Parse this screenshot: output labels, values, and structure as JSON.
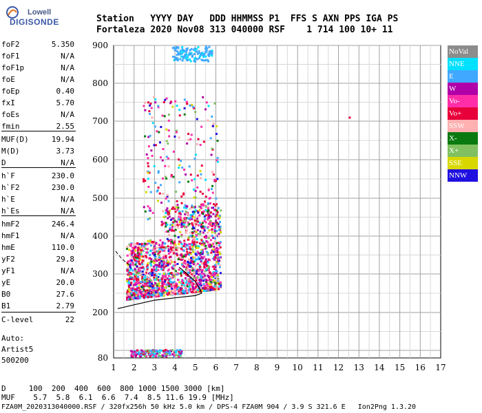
{
  "logo": {
    "brand": "Lowell",
    "product": "DIGISONDE"
  },
  "header": {
    "line1": "Station   YYYY DAY   DDD HHMMSS P1  FFS S AXN PPS IGA PS",
    "line2": "Fortaleza 2020 Nov08 313 040000 RSF    1 714 100 10+ 11"
  },
  "params": [
    {
      "k": "foF2",
      "v": "5.350"
    },
    {
      "k": "foF1",
      "v": "N/A"
    },
    {
      "k": "foF1p",
      "v": "N/A"
    },
    {
      "k": "foE",
      "v": "N/A"
    },
    {
      "k": "foEp",
      "v": "0.40"
    },
    {
      "k": "fxI",
      "v": "5.70"
    },
    {
      "k": "foEs",
      "v": "N/A"
    },
    {
      "k": "fmin",
      "v": "2.55"
    },
    {
      "k": "MUF(D)",
      "v": "19.94"
    },
    {
      "k": "M(D)",
      "v": "3.73"
    },
    {
      "k": "D",
      "v": "N/A"
    },
    {
      "k": "h`F",
      "v": "230.0"
    },
    {
      "k": "h`F2",
      "v": "230.0"
    },
    {
      "k": "h`E",
      "v": "N/A"
    },
    {
      "k": "h`Es",
      "v": "N/A"
    },
    {
      "k": "hmF2",
      "v": "246.4"
    },
    {
      "k": "hmF1",
      "v": "N/A"
    },
    {
      "k": "hmE",
      "v": "110.0"
    },
    {
      "k": "yF2",
      "v": "29.8"
    },
    {
      "k": "yF1",
      "v": "N/A"
    },
    {
      "k": "yE",
      "v": "20.0"
    },
    {
      "k": "B0",
      "v": "27.6"
    },
    {
      "k": "B1",
      "v": "2.79"
    },
    {
      "k": "C-level",
      "v": "22"
    }
  ],
  "auto": {
    "l1": "Auto:",
    "l2": "Artist5",
    "l3": "500200"
  },
  "legend": [
    {
      "label": "NoVal",
      "color": "#8c8c8c"
    },
    {
      "label": "NNE",
      "color": "#00e0ff"
    },
    {
      "label": "E",
      "color": "#40a8ff"
    },
    {
      "label": "W",
      "color": "#b000a8"
    },
    {
      "label": "Vo-",
      "color": "#ff2ea8"
    },
    {
      "label": "Vo+",
      "color": "#e8003a"
    },
    {
      "label": "SSW",
      "color": "#ffb0b0"
    },
    {
      "label": "X-",
      "color": "#0a7a10"
    },
    {
      "label": "X+",
      "color": "#80c060"
    },
    {
      "label": "SSE",
      "color": "#d8d800"
    },
    {
      "label": "NNW",
      "color": "#2010e0"
    }
  ],
  "footer": {
    "d_line": "D     100  200  400  600  800 1000 1500 3000 [km]",
    "muf_line": "MUF    5.7  5.8  6.1  6.6  7.4  8.5 11.6 19.9 [MHz]",
    "file_line": "FZA0M_2020313040000.RSF / 320fx256h 50 kHz 5.0 km / DPS-4 FZA0M 904 / 3.9 S 321.6 E   Ion2Png 1.3.20"
  },
  "chart_data": {
    "type": "scatter",
    "x_ticks": [
      1,
      2,
      3,
      4,
      5,
      6,
      7,
      8,
      9,
      10,
      11,
      12,
      13,
      14,
      15,
      16,
      17
    ],
    "y_ticks": [
      80,
      200,
      300,
      400,
      500,
      600,
      700,
      800,
      900
    ],
    "xlim": [
      1,
      17
    ],
    "y_axis_note": "non-linear virtual height scale",
    "grid": true,
    "trace": {
      "name": "F-trace",
      "points": [
        [
          1.2,
          210
        ],
        [
          2,
          220
        ],
        [
          3,
          232
        ],
        [
          4,
          238
        ],
        [
          5,
          244
        ],
        [
          5.3,
          250
        ],
        [
          5.2,
          263
        ],
        [
          5.0,
          280
        ],
        [
          4.6,
          300
        ],
        [
          4.2,
          318
        ]
      ]
    },
    "e_trace": {
      "name": "E-trace",
      "points": [
        [
          1.1,
          360
        ],
        [
          1.4,
          340
        ],
        [
          1.8,
          322
        ]
      ]
    },
    "echo_clusters": [
      {
        "x_range": [
          1.5,
          6.5
        ],
        "y_range": [
          200,
          480
        ],
        "note": "main F echoes"
      },
      {
        "x_range": [
          1.5,
          3.5
        ],
        "y_range": [
          84,
          105
        ],
        "note": "low echoes"
      },
      {
        "x_range": [
          3.5,
          6
        ],
        "y_range": [
          700,
          900
        ],
        "note": "spread echoes"
      }
    ]
  }
}
